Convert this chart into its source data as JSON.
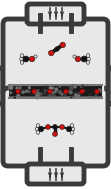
{
  "bg_color": "#ffffff",
  "vessel_border": "#3a3a3a",
  "vessel_fill": "#e8e8e8",
  "catalyst_dark": "#1a1a1a",
  "catalyst_mid": "#444444",
  "catalyst_light": "#888888",
  "red": "#cc1111",
  "black": "#111111",
  "white_atom": "#e0e0e0",
  "pipe_color": "#555555",
  "vessel_lw": 3.5,
  "figw": 1.11,
  "figh": 1.89,
  "dpi": 100
}
